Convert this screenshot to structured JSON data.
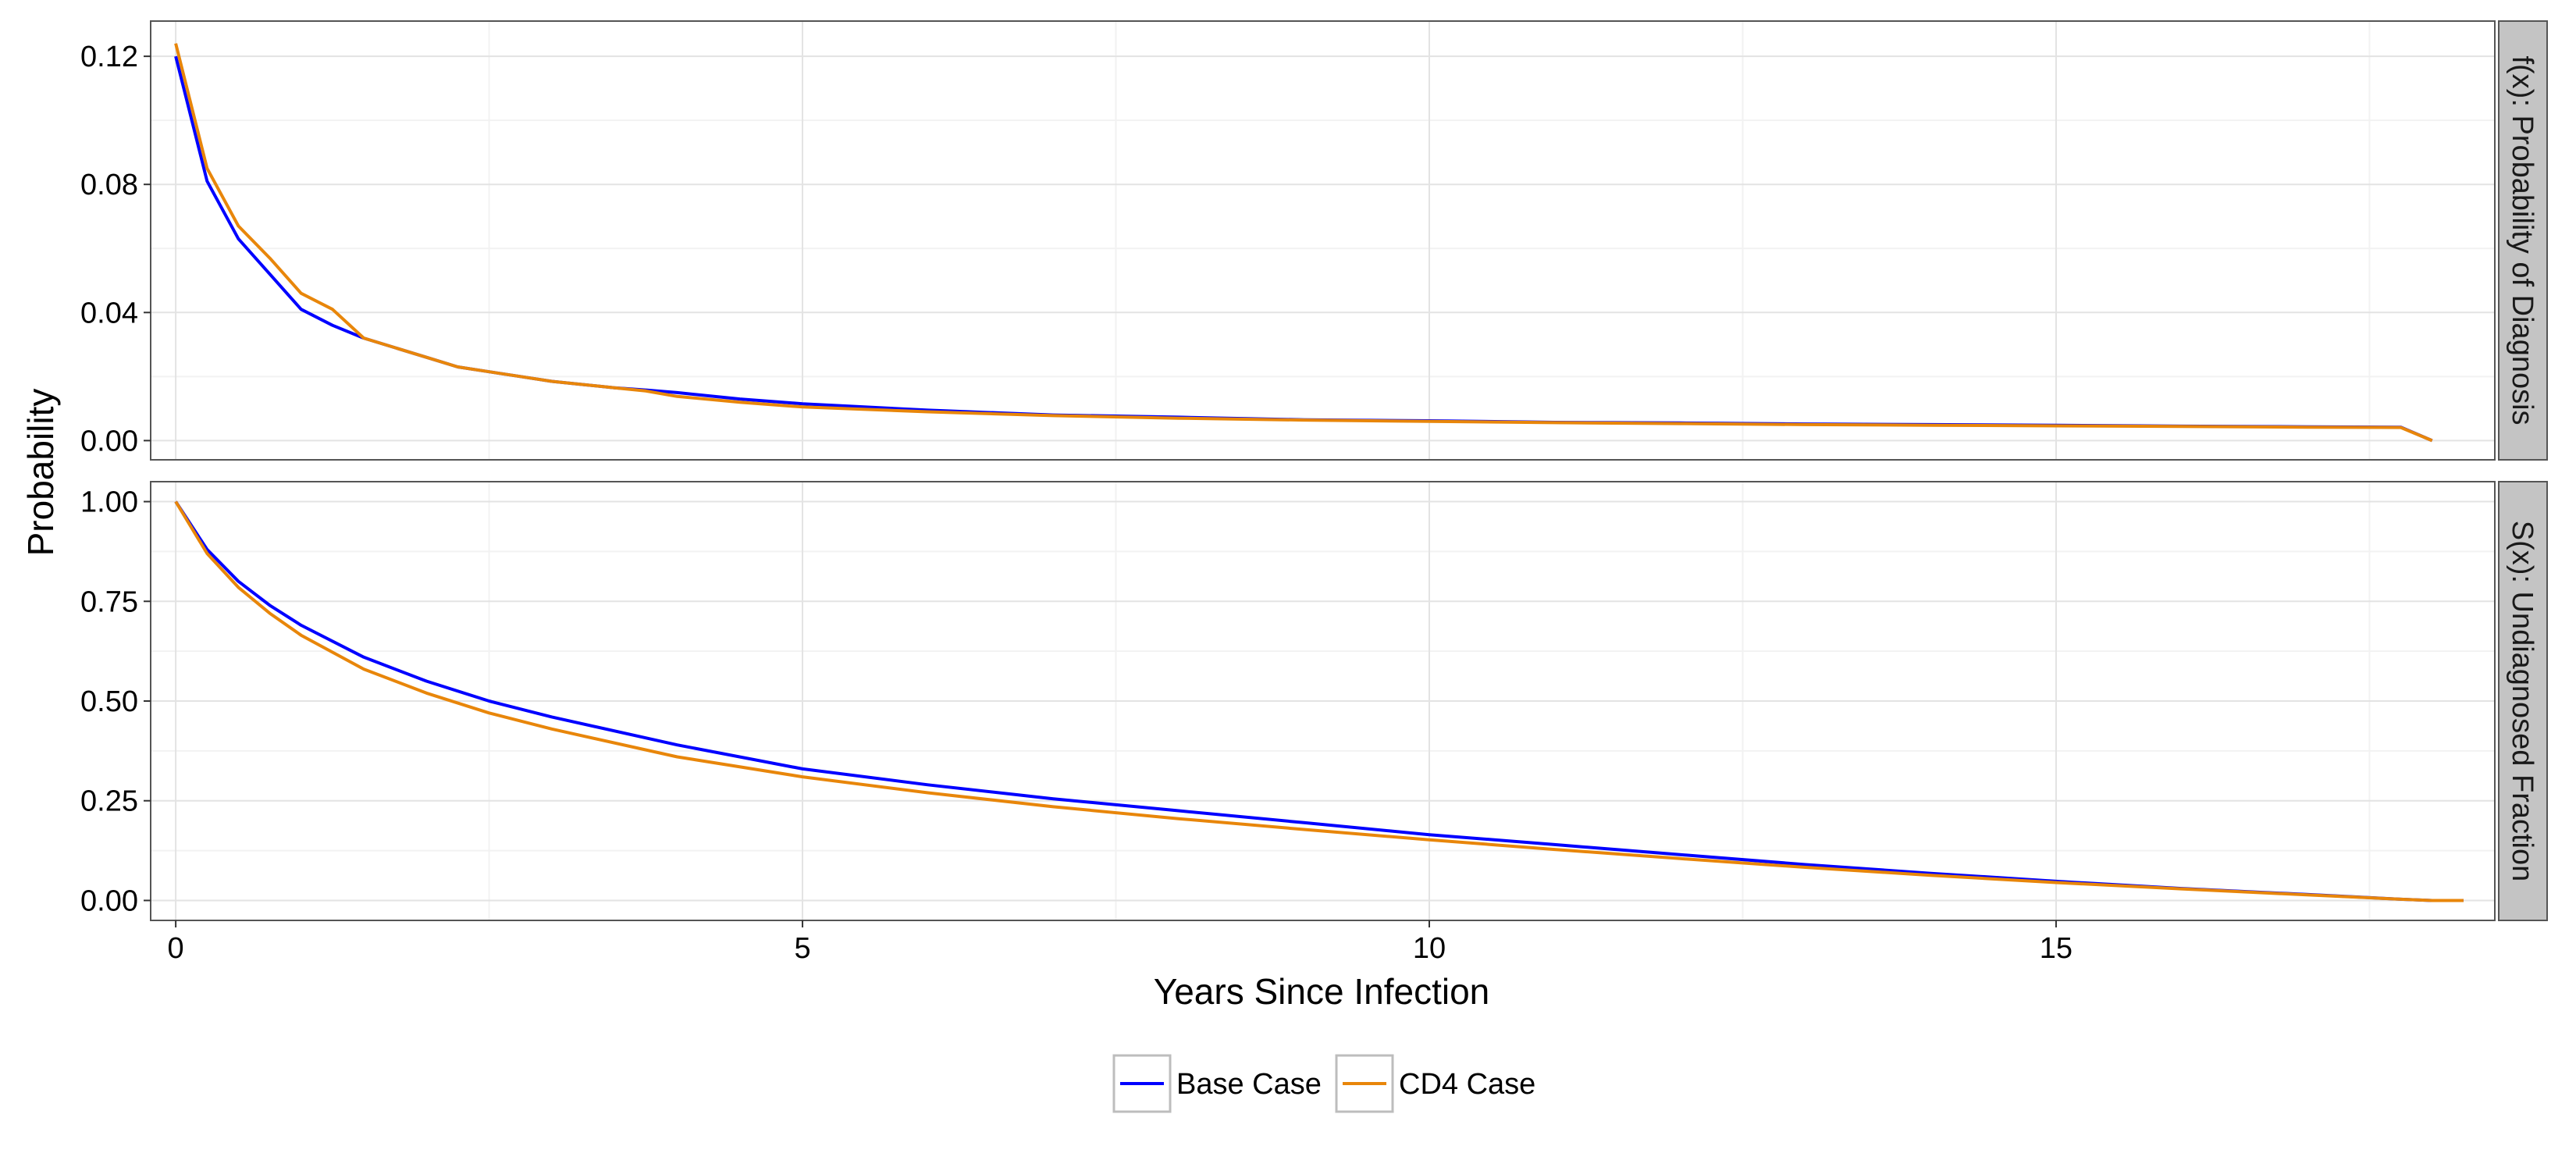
{
  "chart_data": {
    "type": "line",
    "xlabel": "Years Since Infection",
    "ylabel": "Probability",
    "xlim": [
      -0.2,
      18.5
    ],
    "x_ticks": [
      0,
      5,
      10,
      15
    ],
    "x_tick_labels": [
      "0",
      "5",
      "10",
      "15"
    ],
    "grid": true,
    "legend_position": "bottom",
    "series_colors": {
      "Base Case": "#0000ff",
      "CD4 Case": "#e8860a"
    },
    "panels": [
      {
        "strip_label": "f(x): Probability of Diagnosis",
        "ylim": [
          -0.006,
          0.131
        ],
        "y_ticks": [
          0.0,
          0.04,
          0.08,
          0.12
        ],
        "y_tick_labels": [
          "0.00",
          "0.04",
          "0.08",
          "0.12"
        ],
        "series": [
          {
            "name": "Base Case",
            "x": [
              0,
              0.25,
              0.5,
              0.75,
              1,
              1.25,
              1.5,
              1.75,
              2,
              2.25,
              2.5,
              2.75,
              3,
              3.25,
              3.5,
              3.75,
              4,
              4.5,
              5,
              6,
              7,
              8,
              9,
              10,
              11,
              12,
              13,
              14,
              15,
              16,
              17,
              17.75,
              18
            ],
            "y": [
              0.12,
              0.081,
              0.063,
              0.052,
              0.041,
              0.036,
              0.032,
              0.029,
              0.026,
              0.023,
              0.0215,
              0.02,
              0.0185,
              0.0175,
              0.0165,
              0.0158,
              0.015,
              0.013,
              0.0115,
              0.0095,
              0.008,
              0.0073,
              0.0065,
              0.0062,
              0.0057,
              0.0055,
              0.0052,
              0.005,
              0.0048,
              0.0045,
              0.0043,
              0.0042,
              0.0
            ]
          },
          {
            "name": "CD4 Case",
            "x": [
              0,
              0.25,
              0.5,
              0.75,
              1,
              1.25,
              1.5,
              1.75,
              2,
              2.25,
              2.5,
              2.75,
              3,
              3.25,
              3.5,
              3.75,
              4,
              4.5,
              5,
              6,
              7,
              8,
              9,
              10,
              11,
              12,
              13,
              14,
              15,
              16,
              17,
              17.75,
              18
            ],
            "y": [
              0.124,
              0.085,
              0.067,
              0.057,
              0.046,
              0.041,
              0.032,
              0.029,
              0.026,
              0.023,
              0.0215,
              0.02,
              0.0185,
              0.0175,
              0.0165,
              0.0155,
              0.0138,
              0.012,
              0.0105,
              0.009,
              0.0078,
              0.007,
              0.0064,
              0.006,
              0.0056,
              0.0053,
              0.005,
              0.0048,
              0.0046,
              0.0044,
              0.0042,
              0.0041,
              0.0
            ]
          }
        ]
      },
      {
        "strip_label": "S(x): Undiagnosed Fraction",
        "ylim": [
          -0.05,
          1.05
        ],
        "y_ticks": [
          0.0,
          0.25,
          0.5,
          0.75,
          1.0
        ],
        "y_tick_labels": [
          "0.00",
          "0.25",
          "0.50",
          "0.75",
          "1.00"
        ],
        "series": [
          {
            "name": "Base Case",
            "x": [
              0,
              0.25,
              0.5,
              0.75,
              1,
              1.5,
              2,
              2.5,
              3,
              4,
              5,
              6,
              7,
              8,
              9,
              10,
              11,
              12,
              13,
              14,
              15,
              16,
              17,
              17.75,
              18,
              18.25
            ],
            "y": [
              1.0,
              0.88,
              0.8,
              0.74,
              0.69,
              0.61,
              0.55,
              0.5,
              0.46,
              0.39,
              0.33,
              0.29,
              0.255,
              0.225,
              0.195,
              0.165,
              0.14,
              0.115,
              0.09,
              0.068,
              0.048,
              0.03,
              0.015,
              0.003,
              0.0,
              0.0
            ]
          },
          {
            "name": "CD4 Case",
            "x": [
              0,
              0.25,
              0.5,
              0.75,
              1,
              1.5,
              2,
              2.5,
              3,
              4,
              5,
              6,
              7,
              8,
              9,
              10,
              11,
              12,
              13,
              14,
              15,
              16,
              17,
              17.75,
              18,
              18.25
            ],
            "y": [
              1.0,
              0.87,
              0.785,
              0.72,
              0.665,
              0.58,
              0.52,
              0.47,
              0.43,
              0.36,
              0.31,
              0.27,
              0.235,
              0.205,
              0.178,
              0.152,
              0.128,
              0.105,
              0.083,
              0.063,
              0.045,
              0.029,
              0.014,
              0.003,
              0.0,
              0.0
            ]
          }
        ]
      }
    ]
  }
}
